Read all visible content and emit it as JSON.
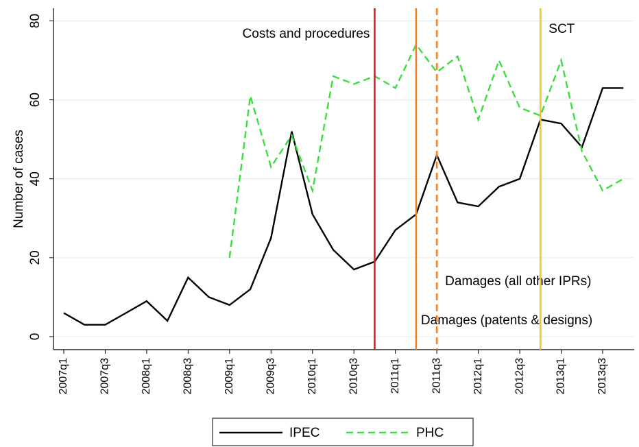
{
  "chart_data": {
    "type": "line",
    "y_label": "Number of cases",
    "categories": [
      "2007q1",
      null,
      "2007q3",
      null,
      "2008q1",
      null,
      "2008q3",
      null,
      "2009q1",
      null,
      "2009q3",
      null,
      "2010q1",
      null,
      "2010q3",
      null,
      "2011q1",
      null,
      "2011q3",
      null,
      "2012q1",
      null,
      "2012q3",
      null,
      "2013q1",
      null,
      "2013q3",
      null
    ],
    "series": [
      {
        "name": "IPEC",
        "color": "#000000",
        "dash": "solid",
        "values": [
          6,
          3,
          3,
          6,
          9,
          4,
          15,
          10,
          8,
          12,
          25,
          52,
          31,
          22,
          17,
          19,
          27,
          31,
          46,
          34,
          33,
          38,
          40,
          55,
          54,
          48,
          63,
          63
        ]
      },
      {
        "name": "PHC",
        "color": "#3ddc3d",
        "dash": "dashed",
        "values": [
          null,
          null,
          null,
          null,
          null,
          null,
          null,
          null,
          20,
          61,
          43,
          51,
          37,
          66,
          64,
          66,
          63,
          74,
          67,
          71,
          55,
          70,
          58,
          56,
          70,
          47,
          37,
          40
        ]
      }
    ],
    "vlines": [
      {
        "x_index": 15,
        "color": "#e41a1c",
        "dash": "solid",
        "label": "Costs and procedures"
      },
      {
        "x_index": 17,
        "color": "#f5821f",
        "dash": "solid",
        "label": "Damages (patents & designs)"
      },
      {
        "x_index": 18,
        "color": "#f5821f",
        "dash": "dashed",
        "label": "Damages (all other IPRs)"
      },
      {
        "x_index": 23,
        "color": "#f5c518",
        "dash": "solid",
        "label": "SCT"
      }
    ],
    "ylim": [
      0,
      80
    ],
    "yticks": [
      0,
      20,
      40,
      60,
      80
    ],
    "grid": true,
    "legend": "bottom"
  }
}
